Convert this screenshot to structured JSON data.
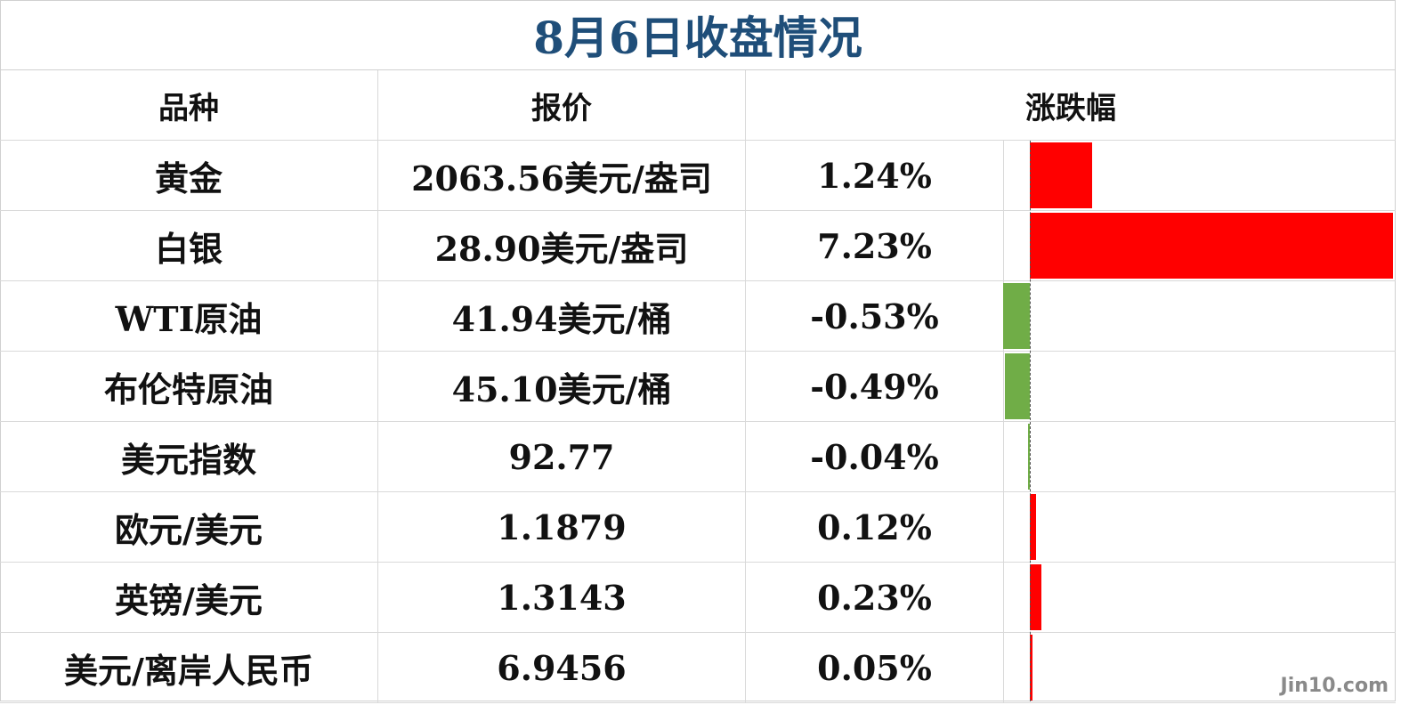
{
  "title": "8月6日收盘情况",
  "headers": [
    "品种",
    "报价",
    "涨跌幅"
  ],
  "chart_data": {
    "type": "table",
    "columns": [
      "品种",
      "报价",
      "涨跌幅"
    ],
    "rows": [
      {
        "name": "黄金",
        "price": "2063.56美元/盎司",
        "change_label": "1.24%",
        "change": 1.24
      },
      {
        "name": "白银",
        "price": "28.90美元/盎司",
        "change_label": "7.23%",
        "change": 7.23
      },
      {
        "name": "WTI原油",
        "price": "41.94美元/桶",
        "change_label": "-0.53%",
        "change": -0.53
      },
      {
        "name": "布伦特原油",
        "price": "45.10美元/桶",
        "change_label": "-0.49%",
        "change": -0.49
      },
      {
        "name": "美元指数",
        "price": "92.77",
        "change_label": "-0.04%",
        "change": -0.04
      },
      {
        "name": "欧元/美元",
        "price": "1.1879",
        "change_label": "0.12%",
        "change": 0.12
      },
      {
        "name": "英镑/美元",
        "price": "1.3143",
        "change_label": "0.23%",
        "change": 0.23
      },
      {
        "name": "美元/离岸人民币",
        "price": "6.9456",
        "change_label": "0.05%",
        "change": 0.05
      }
    ],
    "bar_colors": {
      "positive": "#ff0000",
      "negative": "#70ad47"
    }
  },
  "watermark": "Jin10.com"
}
